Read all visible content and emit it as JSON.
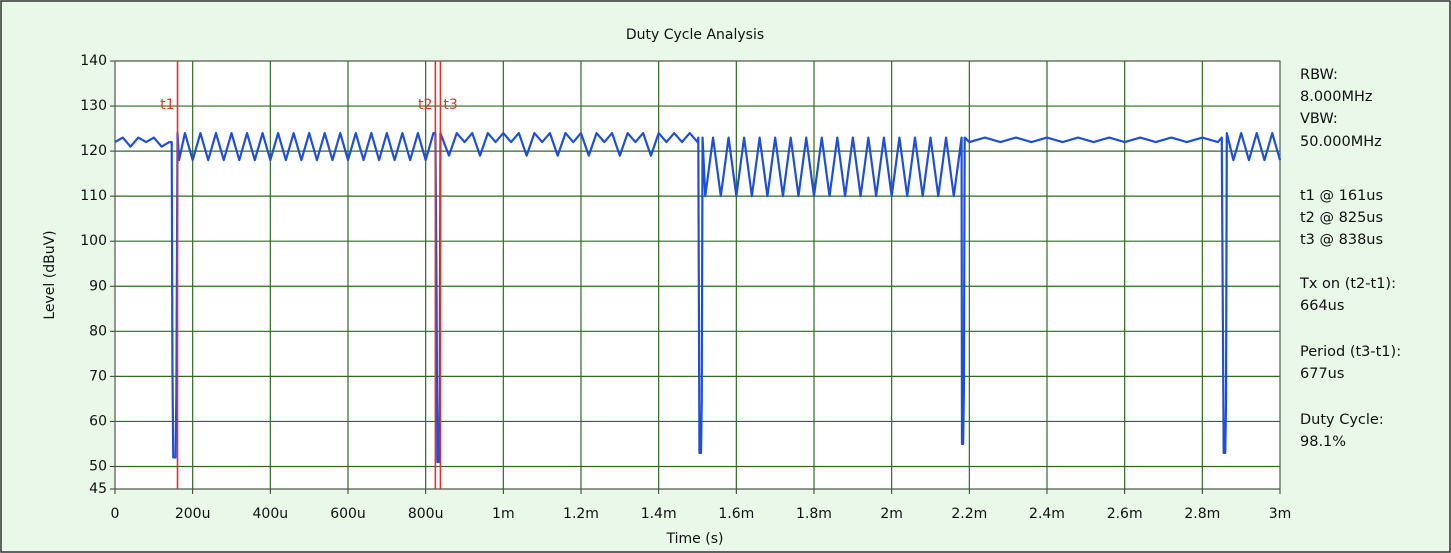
{
  "chart_data": {
    "type": "line",
    "title": "Duty Cycle Analysis",
    "x_label": "Time (s)",
    "y_label": "Level (dBuV)",
    "color": "#1f4fd8",
    "grid": true,
    "grid_color": "#2e6b1f",
    "cursor_color": "#e53030",
    "xlim": [
      0,
      0.003
    ],
    "ylim": [
      45,
      140
    ],
    "xticks": [
      0,
      {
        "value": 0.0002,
        "label": "200u"
      },
      {
        "value": 0.0004,
        "label": "400u"
      },
      {
        "value": 0.0006,
        "label": "600u"
      },
      {
        "value": 0.0008,
        "label": "800u"
      },
      {
        "value": 0.001,
        "label": "1m"
      },
      {
        "value": 0.0012,
        "label": "1.2m"
      },
      {
        "value": 0.0014,
        "label": "1.4m"
      },
      {
        "value": 0.0016,
        "label": "1.6m"
      },
      {
        "value": 0.0018,
        "label": "1.8m"
      },
      {
        "value": 0.002,
        "label": "2m"
      },
      {
        "value": 0.0022,
        "label": "2.2m"
      },
      {
        "value": 0.0024,
        "label": "2.4m"
      },
      {
        "value": 0.0026,
        "label": "2.6m"
      },
      {
        "value": 0.0028,
        "label": "2.8m"
      },
      {
        "value": 0.003,
        "label": "3m"
      }
    ],
    "yticks": [
      45,
      50,
      60,
      70,
      80,
      90,
      100,
      110,
      120,
      130,
      140
    ],
    "x": [
      0,
      2e-05,
      4e-05,
      6e-05,
      8e-05,
      0.0001,
      0.00012,
      0.00014,
      0.000146,
      0.000148,
      0.00015,
      0.000156,
      0.000158,
      0.000161,
      0.000165,
      0.00018,
      0.0002,
      0.00022,
      0.00024,
      0.00026,
      0.00028,
      0.0003,
      0.00032,
      0.00034,
      0.00036,
      0.00038,
      0.0004,
      0.00042,
      0.00044,
      0.00046,
      0.00048,
      0.0005,
      0.00052,
      0.00054,
      0.00056,
      0.00058,
      0.0006,
      0.00062,
      0.00064,
      0.00066,
      0.00068,
      0.0007,
      0.00072,
      0.00074,
      0.00076,
      0.00078,
      0.0008,
      0.00082,
      0.000825,
      0.000828,
      0.00083,
      0.000834,
      0.000836,
      0.000838,
      0.00086,
      0.00088,
      0.0009,
      0.00092,
      0.00094,
      0.00096,
      0.00098,
      0.001,
      0.00102,
      0.00104,
      0.00106,
      0.00108,
      0.0011,
      0.00112,
      0.00114,
      0.00116,
      0.00118,
      0.0012,
      0.00122,
      0.00124,
      0.00126,
      0.00128,
      0.0013,
      0.00132,
      0.00134,
      0.00136,
      0.00138,
      0.0014,
      0.00142,
      0.00144,
      0.00146,
      0.00148,
      0.0015,
      0.001502,
      0.001505,
      0.001509,
      0.001511,
      0.001513,
      0.00152,
      0.00154,
      0.00156,
      0.00158,
      0.0016,
      0.00162,
      0.00164,
      0.00166,
      0.00168,
      0.0017,
      0.00172,
      0.00174,
      0.00176,
      0.00178,
      0.0018,
      0.00182,
      0.00184,
      0.00186,
      0.00188,
      0.0019,
      0.00192,
      0.00194,
      0.00196,
      0.00198,
      0.002,
      0.00202,
      0.00204,
      0.00206,
      0.00208,
      0.0021,
      0.00212,
      0.00214,
      0.00216,
      0.00218,
      0.002181,
      0.002184,
      0.002186,
      0.002188,
      0.0022,
      0.00224,
      0.00228,
      0.00232,
      0.00236,
      0.0024,
      0.00244,
      0.00248,
      0.00252,
      0.00256,
      0.0026,
      0.00264,
      0.00268,
      0.00272,
      0.00276,
      0.0028,
      0.00284,
      0.00285,
      0.002855,
      0.002859,
      0.002861,
      0.002863,
      0.00288,
      0.0029,
      0.00292,
      0.00294,
      0.00296,
      0.00298,
      0.003
    ],
    "values": [
      122,
      123,
      121,
      123,
      122,
      123,
      121,
      122,
      122,
      71,
      52,
      52,
      66,
      124,
      118,
      124,
      118,
      124,
      118,
      124,
      118,
      124,
      118,
      124,
      118,
      124,
      118,
      124,
      118,
      124,
      118,
      124,
      118,
      124,
      118,
      124,
      118,
      124,
      118,
      124,
      118,
      124,
      118,
      124,
      118,
      124,
      118,
      124,
      124,
      89,
      51,
      51,
      65,
      124,
      119,
      124,
      122,
      124,
      119,
      124,
      122,
      124,
      122,
      124,
      119,
      124,
      122,
      124,
      119,
      124,
      122,
      124,
      119,
      124,
      122,
      124,
      119,
      124,
      122,
      124,
      119,
      124,
      122,
      124,
      122,
      124,
      122,
      123,
      53,
      53,
      65,
      123,
      110,
      123,
      110,
      123,
      110,
      123,
      110,
      123,
      110,
      123,
      110,
      123,
      110,
      123,
      110,
      123,
      110,
      123,
      110,
      123,
      110,
      123,
      110,
      123,
      110,
      123,
      110,
      123,
      110,
      123,
      110,
      123,
      110,
      123,
      55,
      55,
      67,
      123,
      122,
      123,
      122,
      123,
      122,
      123,
      122,
      123,
      122,
      123,
      122,
      123,
      122,
      123,
      122,
      123,
      122,
      123,
      53,
      53,
      64,
      124,
      118,
      124,
      118,
      124,
      118,
      124,
      118
    ],
    "cursors": [
      {
        "name": "t1",
        "x": 0.000161
      },
      {
        "name": "t2",
        "x": 0.000825
      },
      {
        "name": "t3",
        "x": 0.000838
      }
    ],
    "info": [
      "RBW:",
      "8.000MHz",
      "VBW:",
      "50.000MHz",
      "t1 @ 161us",
      "t2 @ 825us",
      "t3 @ 838us",
      "Tx on (t2-t1):",
      "664us",
      "Period (t3-t1):",
      "677us",
      "Duty Cycle:",
      "98.1%"
    ]
  }
}
